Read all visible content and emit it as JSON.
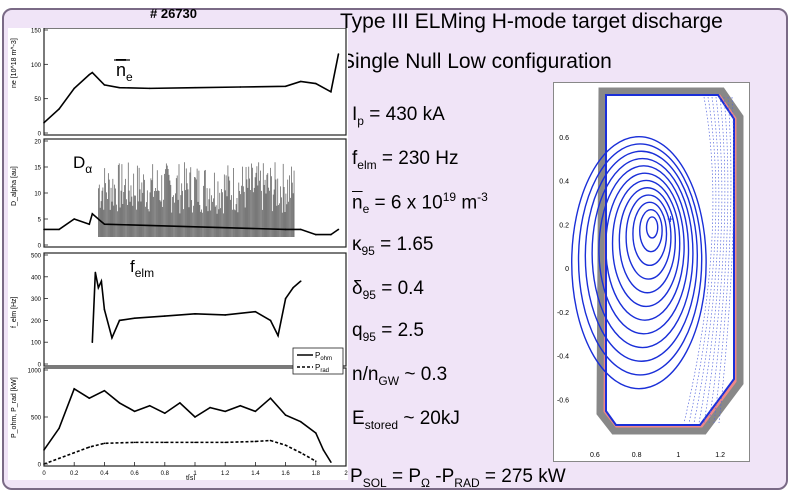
{
  "header": {
    "shot_number": "# 26730",
    "title_line1": "Type III ELMing H-mode target discharge",
    "title_line2": "Single Null Low configuration"
  },
  "parameters": {
    "ip": {
      "sym": "I",
      "sub": "p",
      "rest": " = 430 kA"
    },
    "felm": {
      "sym": "f",
      "sub": "elm",
      "rest": " = 230 Hz"
    },
    "ne": {
      "sym": "n",
      "sub": "e",
      "rest": " = 6 x 10",
      "sup": "19",
      "unit": " m",
      "unitsup": "-3"
    },
    "kappa": {
      "sym": "κ",
      "sub": "95",
      "rest": " = 1.65"
    },
    "delta": {
      "sym": "δ",
      "sub": "95",
      "rest": " = 0.4"
    },
    "q": {
      "sym": "q",
      "sub": "95",
      "rest": " = 2.5"
    },
    "ngw": {
      "pre": "n/n",
      "sub": "GW",
      "rest": " ~ 0.3"
    },
    "estored": {
      "sym": "E",
      "sub": "stored",
      "rest": " ~ 20kJ"
    },
    "psol": {
      "p1": "P",
      "s1": "SOL",
      "m1": " = P",
      "s2": "Ω",
      "m2": " -P",
      "s3": "RAD",
      "m3": " = 275 kW"
    }
  },
  "chart_data": [
    {
      "type": "line",
      "panel": "density",
      "label": "n_e",
      "ylabel": "ne [10^18 m^-3]",
      "ylim": [
        0,
        150
      ],
      "yticks": [
        "0",
        "50",
        "100",
        "150"
      ],
      "x": [
        0.0,
        0.1,
        0.2,
        0.3,
        0.32,
        0.4,
        0.5,
        0.7,
        1.0,
        1.3,
        1.6,
        1.7,
        1.8,
        1.9,
        1.95
      ],
      "values": [
        15,
        35,
        65,
        85,
        88,
        70,
        66,
        65,
        66,
        67,
        68,
        75,
        72,
        60,
        115
      ]
    },
    {
      "type": "line",
      "panel": "dalpha",
      "label": "D_α",
      "ylabel": "D_alpha [au]",
      "ylim": [
        0,
        20
      ],
      "yticks": [
        "0",
        "5",
        "10",
        "15",
        "20"
      ],
      "x": [
        0.0,
        0.1,
        0.2,
        0.3,
        0.32,
        0.4,
        1.6,
        1.7,
        1.8,
        1.9,
        1.95
      ],
      "values": [
        3,
        3,
        5,
        4,
        6,
        4,
        3,
        3,
        2,
        2,
        3
      ]
    },
    {
      "type": "line",
      "panel": "felm",
      "label": "f_elm",
      "ylabel": "f_elm [Hz]",
      "ylim": [
        0,
        500
      ],
      "yticks": [
        "0",
        "100",
        "200",
        "300",
        "400",
        "500"
      ],
      "x": [
        0.32,
        0.34,
        0.36,
        0.38,
        0.4,
        0.45,
        0.5,
        0.6,
        0.8,
        1.0,
        1.2,
        1.4,
        1.5,
        1.55,
        1.6,
        1.65,
        1.7
      ],
      "values": [
        100,
        420,
        350,
        380,
        250,
        120,
        200,
        210,
        220,
        230,
        225,
        240,
        200,
        130,
        300,
        350,
        380
      ]
    },
    {
      "type": "line",
      "panel": "power",
      "ylabel": "P_ohm, P_rad [kW]",
      "ylim": [
        0,
        1000
      ],
      "yticks": [
        "0",
        "500",
        "1000"
      ],
      "xlim": [
        0,
        2
      ],
      "xticks": [
        "0",
        "0.2",
        "0.4",
        "0.6",
        "0.8",
        "1",
        "1.2",
        "1.4",
        "1.6",
        "1.8",
        "2"
      ],
      "xlabel": "t[s]",
      "series": [
        {
          "name": "P_ohm",
          "x": [
            0.0,
            0.1,
            0.2,
            0.3,
            0.4,
            0.5,
            0.6,
            0.7,
            0.8,
            0.9,
            1.0,
            1.1,
            1.2,
            1.3,
            1.4,
            1.5,
            1.6,
            1.7,
            1.8,
            1.85,
            1.9
          ],
          "values": [
            150,
            380,
            800,
            700,
            780,
            650,
            560,
            620,
            540,
            650,
            500,
            600,
            560,
            620,
            560,
            700,
            520,
            450,
            330,
            150,
            20
          ]
        },
        {
          "name": "P_rad",
          "x": [
            0.0,
            0.1,
            0.2,
            0.3,
            0.4,
            0.6,
            0.8,
            1.0,
            1.2,
            1.4,
            1.5,
            1.6,
            1.7,
            1.8
          ],
          "values": [
            0,
            60,
            120,
            180,
            220,
            230,
            230,
            230,
            230,
            240,
            250,
            200,
            120,
            30
          ]
        }
      ]
    },
    {
      "type": "scatter",
      "panel": "equilibrium",
      "xlim": [
        0.5,
        1.3
      ],
      "ylim": [
        -0.8,
        0.8
      ],
      "xticks": [
        "0.6",
        "0.8",
        "1",
        "1.2"
      ],
      "yticks": [
        "0.6",
        "0.4",
        "0.2",
        "0",
        "-0.2",
        "-0.4",
        "-0.6"
      ],
      "magnetic_axis": [
        0.88,
        0.2
      ]
    }
  ]
}
